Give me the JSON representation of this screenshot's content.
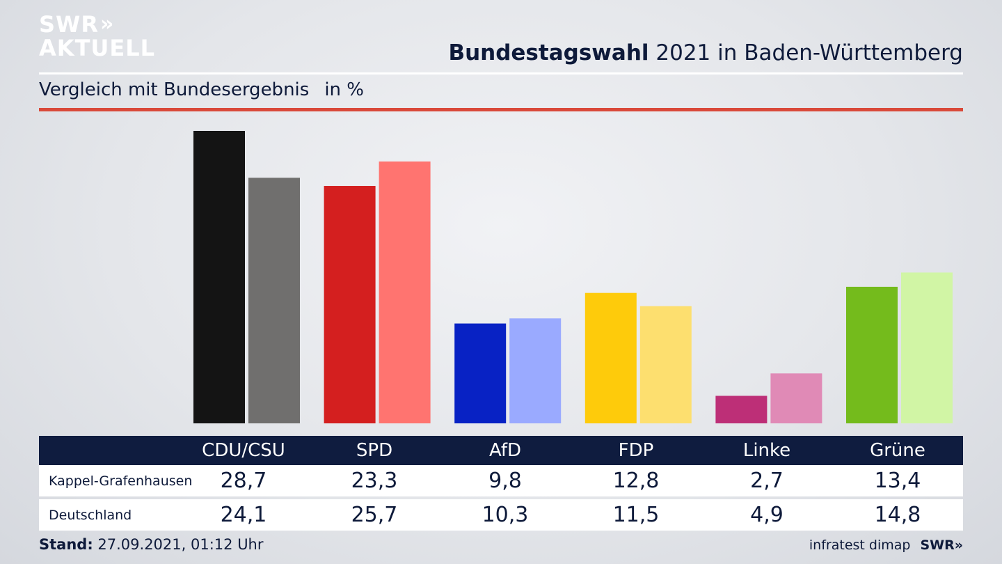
{
  "brand": {
    "line1": "SWR",
    "chevrons": "»",
    "line2": "AKTUELL"
  },
  "header": {
    "title_bold": "Bundestagswahl",
    "title_rest": "2021 in Baden-Württemberg"
  },
  "subheader": {
    "text": "Vergleich mit Bundesergebnis",
    "unit": "in %"
  },
  "colors": {
    "accent_rule": "#d9493a",
    "table_header": "#0f1c3f"
  },
  "chart_data": {
    "type": "bar",
    "categories": [
      "CDU/CSU",
      "SPD",
      "AfD",
      "FDP",
      "Linke",
      "Grüne"
    ],
    "series": [
      {
        "name": "Kappel-Grafenhausen",
        "values": [
          28.7,
          23.3,
          9.8,
          12.8,
          2.7,
          13.4
        ],
        "colors": [
          "#141414",
          "#d41f1f",
          "#0822c4",
          "#fecb0b",
          "#bd2f77",
          "#74bb1c"
        ]
      },
      {
        "name": "Deutschland",
        "values": [
          24.1,
          25.7,
          10.3,
          11.5,
          4.9,
          14.8
        ],
        "colors": [
          "#706f6e",
          "#ff7470",
          "#9aaaff",
          "#fddf6f",
          "#e08ab6",
          "#d1f5a5"
        ]
      }
    ],
    "ylim": [
      0,
      28.7
    ],
    "title": "Bundestagswahl 2021 in Baden-Württemberg",
    "subtitle": "Vergleich mit Bundesergebnis",
    "ylabel": "in %"
  },
  "table": {
    "headers": [
      "CDU/CSU",
      "SPD",
      "AfD",
      "FDP",
      "Linke",
      "Grüne"
    ],
    "rows": [
      {
        "label": "Kappel-Grafenhausen",
        "values": [
          "28,7",
          "23,3",
          "9,8",
          "12,8",
          "2,7",
          "13,4"
        ]
      },
      {
        "label": "Deutschland",
        "values": [
          "24,1",
          "25,7",
          "10,3",
          "11,5",
          "4,9",
          "14,8"
        ]
      }
    ]
  },
  "footer": {
    "stand_label": "Stand:",
    "stand_value": "27.09.2021, 01:12 Uhr",
    "source": "infratest dimap",
    "brand": "SWR»"
  }
}
